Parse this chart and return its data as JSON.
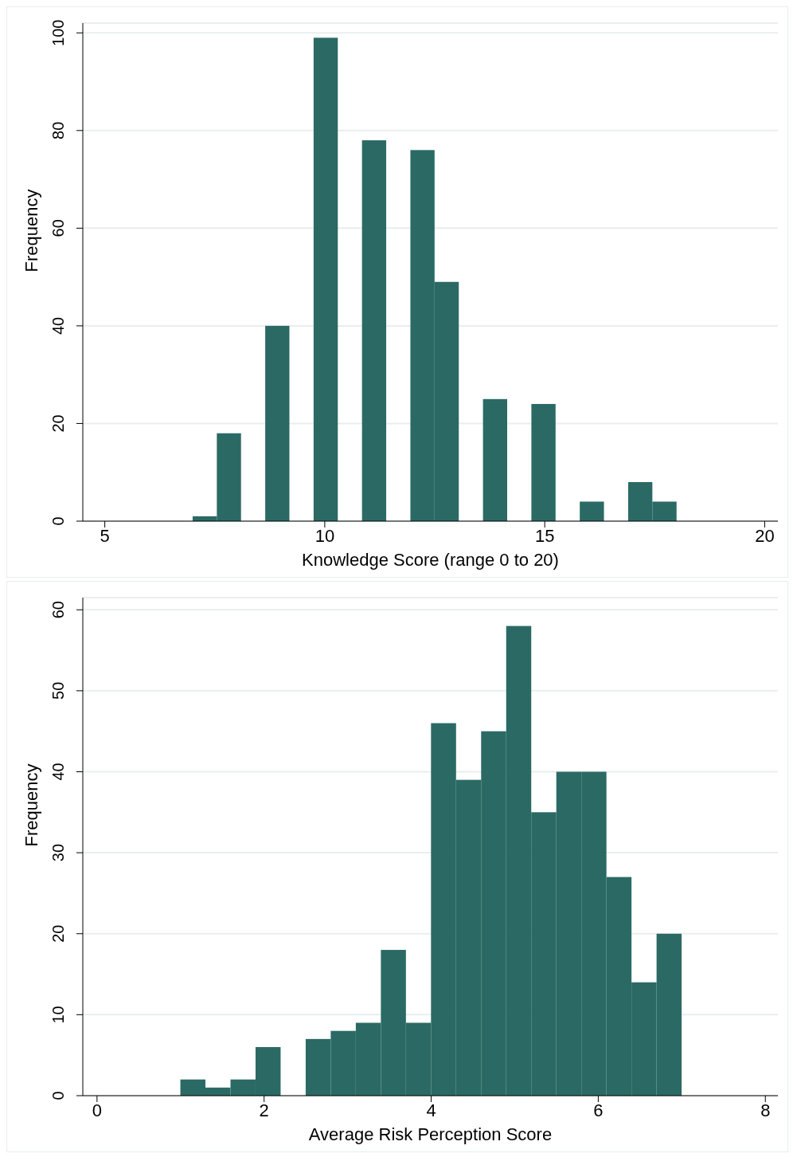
{
  "chart_data": [
    {
      "type": "histogram",
      "xlabel": "Knowledge Score (range 0 to 20)",
      "ylabel": "Frequency",
      "color": "#2b6a64",
      "grid": "y",
      "bins": [
        7,
        7.55,
        8.1,
        8.65,
        9.2,
        9.75,
        10.3,
        10.85,
        11.4,
        11.95,
        12.5,
        13.05,
        13.6,
        14.15,
        14.7,
        15.25,
        15.8,
        16.35,
        16.9,
        17.45,
        18
      ],
      "values": [
        1,
        18,
        0,
        40,
        0,
        99,
        0,
        78,
        0,
        76,
        49,
        0,
        25,
        0,
        24,
        0,
        4,
        0,
        8,
        4
      ],
      "xlim": [
        4.5,
        20.3
      ],
      "xticks": [
        5,
        10,
        15,
        20
      ],
      "ylim": [
        0,
        102
      ],
      "yticks": [
        0,
        20,
        40,
        60,
        80,
        100
      ]
    },
    {
      "type": "histogram",
      "xlabel": "Average Risk Perception Score",
      "ylabel": "Frequency",
      "color": "#2b6a64",
      "grid": "y",
      "bins": [
        1,
        1.3,
        1.6,
        1.9,
        2.2,
        2.5,
        2.8,
        3.1,
        3.4,
        3.7,
        4,
        4.3,
        4.6,
        4.9,
        5.2,
        5.5,
        5.8,
        6.1,
        6.4,
        6.7,
        7
      ],
      "values": [
        2,
        1,
        2,
        6,
        0,
        7,
        8,
        9,
        18,
        9,
        46,
        39,
        45,
        58,
        35,
        40,
        40,
        27,
        14,
        20
      ],
      "xlim": [
        -0.17,
        8.15
      ],
      "xticks": [
        0,
        2,
        4,
        6,
        8
      ],
      "ylim": [
        0,
        61.5
      ],
      "yticks": [
        0,
        10,
        20,
        30,
        40,
        50,
        60
      ]
    }
  ]
}
